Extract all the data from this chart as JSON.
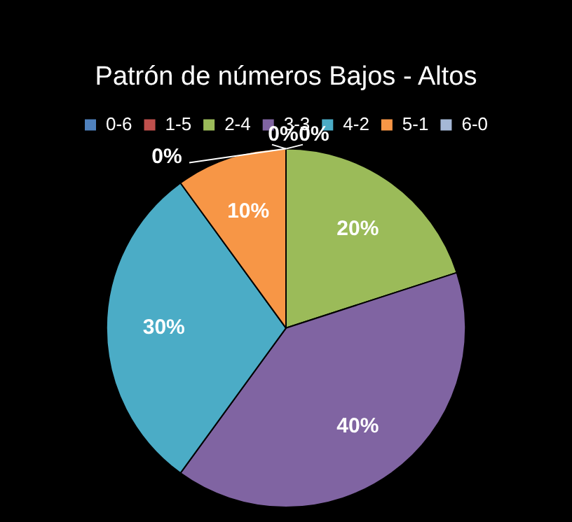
{
  "chart_data": {
    "type": "pie",
    "title": "Patrón de números Bajos - Altos",
    "categories": [
      "0-6",
      "1-5",
      "2-4",
      "3-3",
      "4-2",
      "5-1",
      "6-0"
    ],
    "values": [
      0,
      0,
      20,
      40,
      30,
      10,
      0
    ],
    "value_labels": [
      "0%",
      "0%",
      "20%",
      "40%",
      "30%",
      "10%",
      "0%"
    ],
    "colors": [
      "#4f81bd",
      "#c0504d",
      "#9bbb59",
      "#8064a2",
      "#4bacc6",
      "#f79646",
      "#a5b8d6"
    ],
    "legend": "top"
  }
}
